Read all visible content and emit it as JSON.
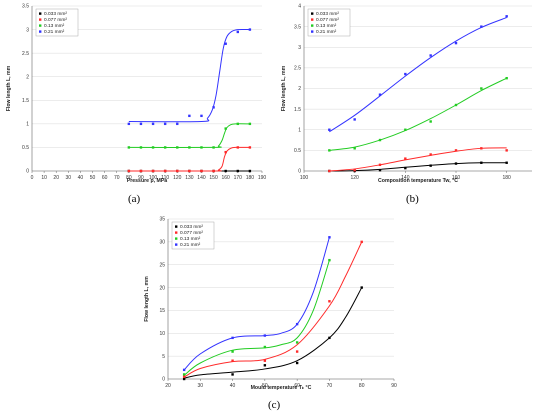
{
  "chart_data": [
    {
      "type": "scatter",
      "caption": "(a)",
      "xlabel": "Pressure p, MPa",
      "ylabel": "Flow length L, mm",
      "xlim": [
        0,
        190
      ],
      "ylim": [
        0,
        3.5
      ],
      "xticks": [
        "0",
        "10",
        "20",
        "30",
        "40",
        "50",
        "60",
        "70",
        "80",
        "90",
        "100",
        "110",
        "120",
        "130",
        "140",
        "150",
        "160",
        "170",
        "180",
        "190"
      ],
      "yticks": [
        "0",
        "0.5",
        "1",
        "1.5",
        "2",
        "2.5",
        "3",
        "3.5"
      ],
      "legend_position": "top-left",
      "series": [
        {
          "name": "0.033 mm²",
          "color": "#000000",
          "points": [
            [
              80,
              0
            ],
            [
              90,
              0
            ],
            [
              100,
              0
            ],
            [
              110,
              0
            ],
            [
              120,
              0
            ],
            [
              130,
              0
            ],
            [
              140,
              0
            ],
            [
              150,
              0
            ],
            [
              160,
              0
            ],
            [
              170,
              0
            ],
            [
              180,
              0
            ]
          ],
          "curve": [
            [
              80,
              0
            ],
            [
              180,
              0
            ]
          ]
        },
        {
          "name": "0.077 mm²",
          "color": "#ff2a2a",
          "points": [
            [
              80,
              0
            ],
            [
              90,
              0
            ],
            [
              100,
              0
            ],
            [
              110,
              0
            ],
            [
              120,
              0
            ],
            [
              130,
              0
            ],
            [
              140,
              0
            ],
            [
              150,
              0
            ],
            [
              160,
              0.4
            ],
            [
              170,
              0.5
            ],
            [
              180,
              0.5
            ]
          ],
          "curve": [
            [
              80,
              0
            ],
            [
              150,
              0
            ],
            [
              154,
              0.02
            ],
            [
              157,
              0.1
            ],
            [
              159,
              0.3
            ],
            [
              161,
              0.42
            ],
            [
              164,
              0.48
            ],
            [
              168,
              0.5
            ],
            [
              180,
              0.5
            ]
          ]
        },
        {
          "name": "0.13 mm²",
          "color": "#22cc22",
          "points": [
            [
              80,
              0.5
            ],
            [
              90,
              0.5
            ],
            [
              100,
              0.5
            ],
            [
              110,
              0.5
            ],
            [
              120,
              0.5
            ],
            [
              130,
              0.5
            ],
            [
              140,
              0.5
            ],
            [
              150,
              0.5
            ],
            [
              160,
              0.9
            ],
            [
              170,
              1
            ],
            [
              180,
              1
            ]
          ],
          "curve": [
            [
              80,
              0.5
            ],
            [
              150,
              0.5
            ],
            [
              154,
              0.53
            ],
            [
              157,
              0.65
            ],
            [
              159,
              0.8
            ],
            [
              161,
              0.92
            ],
            [
              164,
              0.98
            ],
            [
              168,
              1
            ],
            [
              180,
              1
            ]
          ]
        },
        {
          "name": "0.21 mm²",
          "color": "#3333ff",
          "points": [
            [
              80,
              1
            ],
            [
              90,
              1
            ],
            [
              100,
              1
            ],
            [
              110,
              1
            ],
            [
              120,
              1
            ],
            [
              130,
              1.17
            ],
            [
              140,
              1.17
            ],
            [
              150,
              1.35
            ],
            [
              160,
              2.7
            ],
            [
              170,
              2.95
            ],
            [
              180,
              3
            ]
          ],
          "curve": [
            [
              80,
              1.05
            ],
            [
              140,
              1.05
            ],
            [
              145,
              1.12
            ],
            [
              149,
              1.3
            ],
            [
              152,
              1.6
            ],
            [
              155,
              2.1
            ],
            [
              158,
              2.6
            ],
            [
              161,
              2.85
            ],
            [
              165,
              2.96
            ],
            [
              170,
              3
            ],
            [
              180,
              3
            ]
          ]
        }
      ]
    },
    {
      "type": "scatter",
      "caption": "(b)",
      "xlabel": "Composition temperature Tw, °C",
      "ylabel": "Flow length L, mm",
      "xlim": [
        100,
        190
      ],
      "ylim": [
        0,
        4
      ],
      "xticks": [
        "100",
        "120",
        "140",
        "160",
        "180"
      ],
      "yticks": [
        "0",
        "0.5",
        "1",
        "1.5",
        "2",
        "2.5",
        "3",
        "3.5",
        "4"
      ],
      "legend_position": "top-left",
      "series": [
        {
          "name": "0.033 mm²",
          "color": "#000000",
          "points": [
            [
              110,
              0
            ],
            [
              120,
              0
            ],
            [
              130,
              0.02
            ],
            [
              140,
              0.07
            ],
            [
              150,
              0.13
            ],
            [
              160,
              0.18
            ],
            [
              170,
              0.2
            ],
            [
              180,
              0.2
            ]
          ],
          "curve": [
            [
              110,
              0
            ],
            [
              120,
              0.01
            ],
            [
              130,
              0.04
            ],
            [
              140,
              0.09
            ],
            [
              150,
              0.14
            ],
            [
              160,
              0.18
            ],
            [
              170,
              0.2
            ],
            [
              180,
              0.2
            ]
          ]
        },
        {
          "name": "0.077 mm²",
          "color": "#ff2a2a",
          "points": [
            [
              110,
              0
            ],
            [
              120,
              0.02
            ],
            [
              130,
              0.15
            ],
            [
              140,
              0.3
            ],
            [
              150,
              0.4
            ],
            [
              160,
              0.5
            ],
            [
              170,
              0.55
            ],
            [
              180,
              0.5
            ]
          ],
          "curve": [
            [
              110,
              0
            ],
            [
              120,
              0.05
            ],
            [
              130,
              0.15
            ],
            [
              140,
              0.27
            ],
            [
              150,
              0.38
            ],
            [
              160,
              0.48
            ],
            [
              170,
              0.55
            ],
            [
              180,
              0.56
            ]
          ]
        },
        {
          "name": "0.13 mm²",
          "color": "#22cc22",
          "points": [
            [
              110,
              0.5
            ],
            [
              120,
              0.55
            ],
            [
              130,
              0.75
            ],
            [
              140,
              1.0
            ],
            [
              150,
              1.2
            ],
            [
              160,
              1.6
            ],
            [
              170,
              2.0
            ],
            [
              180,
              2.25
            ]
          ],
          "curve": [
            [
              110,
              0.5
            ],
            [
              120,
              0.58
            ],
            [
              130,
              0.75
            ],
            [
              140,
              0.98
            ],
            [
              150,
              1.27
            ],
            [
              160,
              1.6
            ],
            [
              170,
              1.95
            ],
            [
              180,
              2.25
            ]
          ]
        },
        {
          "name": "0.21 mm²",
          "color": "#3333ff",
          "points": [
            [
              110,
              1.0
            ],
            [
              120,
              1.25
            ],
            [
              130,
              1.85
            ],
            [
              140,
              2.35
            ],
            [
              150,
              2.8
            ],
            [
              160,
              3.1
            ],
            [
              170,
              3.5
            ],
            [
              180,
              3.75
            ]
          ],
          "curve": [
            [
              110,
              0.95
            ],
            [
              120,
              1.35
            ],
            [
              130,
              1.82
            ],
            [
              140,
              2.3
            ],
            [
              150,
              2.75
            ],
            [
              160,
              3.15
            ],
            [
              170,
              3.48
            ],
            [
              180,
              3.72
            ]
          ]
        }
      ]
    },
    {
      "type": "scatter",
      "caption": "(c)",
      "xlabel": "Mould temperature Tₖ °C",
      "ylabel": "Flow length L, mm",
      "xlim": [
        20,
        90
      ],
      "ylim": [
        0,
        35
      ],
      "xticks": [
        "20",
        "30",
        "40",
        "50",
        "60",
        "70",
        "80",
        "90"
      ],
      "yticks": [
        "0",
        "5",
        "10",
        "15",
        "20",
        "25",
        "30",
        "35"
      ],
      "legend_position": "top-left",
      "series": [
        {
          "name": "0.033 mm²",
          "color": "#000000",
          "points": [
            [
              25,
              0
            ],
            [
              40,
              1
            ],
            [
              50,
              3
            ],
            [
              60,
              3.5
            ],
            [
              70,
              9
            ],
            [
              80,
              20
            ]
          ],
          "curve": [
            [
              25,
              0.2
            ],
            [
              30,
              0.9
            ],
            [
              40,
              1.5
            ],
            [
              50,
              2.2
            ],
            [
              60,
              4
            ],
            [
              70,
              9
            ],
            [
              75,
              13.5
            ],
            [
              80,
              20
            ]
          ]
        },
        {
          "name": "0.077 mm²",
          "color": "#ff2a2a",
          "points": [
            [
              25,
              0.5
            ],
            [
              40,
              4
            ],
            [
              50,
              4
            ],
            [
              60,
              6
            ],
            [
              70,
              17
            ],
            [
              80,
              30
            ]
          ],
          "curve": [
            [
              25,
              0.4
            ],
            [
              30,
              2.3
            ],
            [
              40,
              3.8
            ],
            [
              50,
              4.3
            ],
            [
              60,
              7.5
            ],
            [
              70,
              16
            ],
            [
              75,
              22.5
            ],
            [
              80,
              30
            ]
          ]
        },
        {
          "name": "0.13 mm²",
          "color": "#22cc22",
          "points": [
            [
              25,
              1
            ],
            [
              40,
              6
            ],
            [
              50,
              7
            ],
            [
              60,
              8
            ],
            [
              70,
              26
            ]
          ],
          "curve": [
            [
              25,
              0.8
            ],
            [
              30,
              3.5
            ],
            [
              40,
              6.3
            ],
            [
              50,
              6.8
            ],
            [
              55,
              7.5
            ],
            [
              60,
              9
            ],
            [
              65,
              15
            ],
            [
              70,
              26
            ]
          ]
        },
        {
          "name": "0.21 mm²",
          "color": "#3333ff",
          "points": [
            [
              25,
              2
            ],
            [
              40,
              9
            ],
            [
              50,
              9.5
            ],
            [
              60,
              12
            ],
            [
              70,
              31
            ]
          ],
          "curve": [
            [
              25,
              2
            ],
            [
              30,
              5.5
            ],
            [
              40,
              9
            ],
            [
              50,
              9.5
            ],
            [
              55,
              10
            ],
            [
              60,
              12
            ],
            [
              65,
              19
            ],
            [
              70,
              31
            ]
          ]
        }
      ]
    }
  ]
}
